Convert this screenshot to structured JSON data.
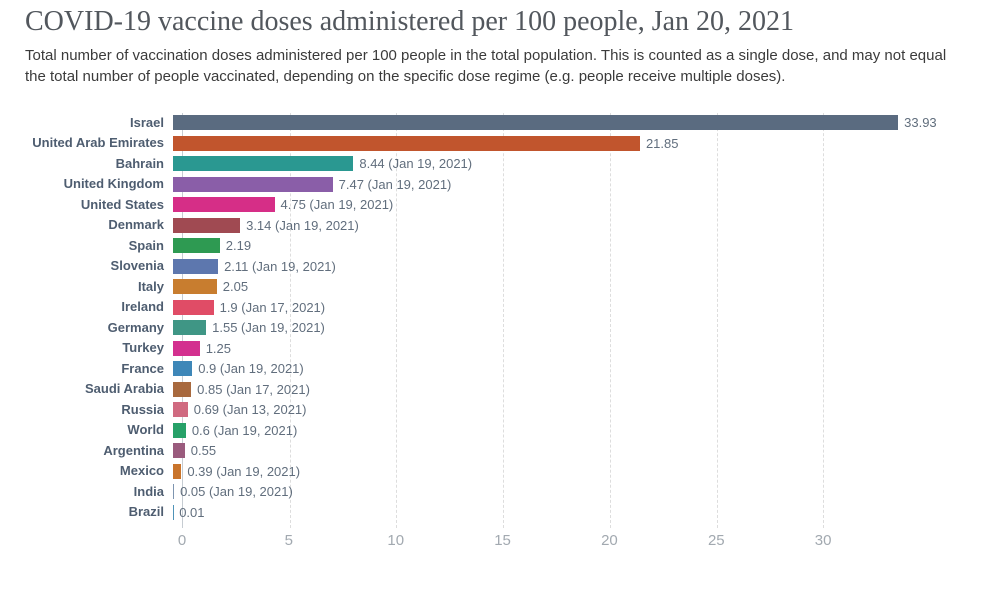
{
  "header": {
    "title": "COVID-19 vaccine doses administered per 100 people, Jan 20, 2021",
    "subtitle": "Total number of vaccination doses administered per 100 people in the total population. This is counted as a single dose, and may not equal the total number of people vaccinated, depending on the specific dose regime (e.g. people receive multiple doses)."
  },
  "chart_data": {
    "type": "bar",
    "orientation": "horizontal",
    "title": "COVID-19 vaccine doses administered per 100 people, Jan 20, 2021",
    "xlabel": "",
    "ylabel": "",
    "xlim": [
      0,
      35
    ],
    "x_ticks": [
      0,
      5,
      10,
      15,
      20,
      25,
      30
    ],
    "grid": "vertical-dashed",
    "legend": "none",
    "categories": [
      "Israel",
      "United Arab Emirates",
      "Bahrain",
      "United Kingdom",
      "United States",
      "Denmark",
      "Spain",
      "Slovenia",
      "Italy",
      "Ireland",
      "Germany",
      "Turkey",
      "France",
      "Saudi Arabia",
      "Russia",
      "World",
      "Argentina",
      "Mexico",
      "India",
      "Brazil"
    ],
    "values": [
      33.93,
      21.85,
      8.44,
      7.47,
      4.75,
      3.14,
      2.19,
      2.11,
      2.05,
      1.9,
      1.55,
      1.25,
      0.9,
      0.85,
      0.69,
      0.6,
      0.55,
      0.39,
      0.05,
      0.01
    ],
    "value_labels": [
      "33.93",
      "21.85",
      "8.44 (Jan 19, 2021)",
      "7.47 (Jan 19, 2021)",
      "4.75 (Jan 19, 2021)",
      "3.14 (Jan 19, 2021)",
      "2.19",
      "2.11 (Jan 19, 2021)",
      "2.05",
      "1.9 (Jan 17, 2021)",
      "1.55 (Jan 19, 2021)",
      "1.25",
      "0.9 (Jan 19, 2021)",
      "0.85 (Jan 17, 2021)",
      "0.69 (Jan 13, 2021)",
      "0.6 (Jan 19, 2021)",
      "0.55",
      "0.39 (Jan 19, 2021)",
      "0.05 (Jan 19, 2021)",
      "0.01"
    ],
    "bar_colors": [
      "#5a6b80",
      "#c1552d",
      "#2a9891",
      "#8a5ea8",
      "#d62e87",
      "#a04a52",
      "#2e9a52",
      "#5d77ae",
      "#c87d2f",
      "#e04c66",
      "#3f9685",
      "#d3308f",
      "#3e87b8",
      "#a8693e",
      "#d06a80",
      "#27a168",
      "#9a5b7d",
      "#c9742b",
      "#7e95b0",
      "#4f93b8"
    ]
  },
  "style_colors": {
    "axis_line": "#c6ccd2",
    "gridline": "#dddddd",
    "tick_label": "#a2a9b0",
    "country_label": "#4e5d70",
    "value_label": "#616e7d"
  }
}
